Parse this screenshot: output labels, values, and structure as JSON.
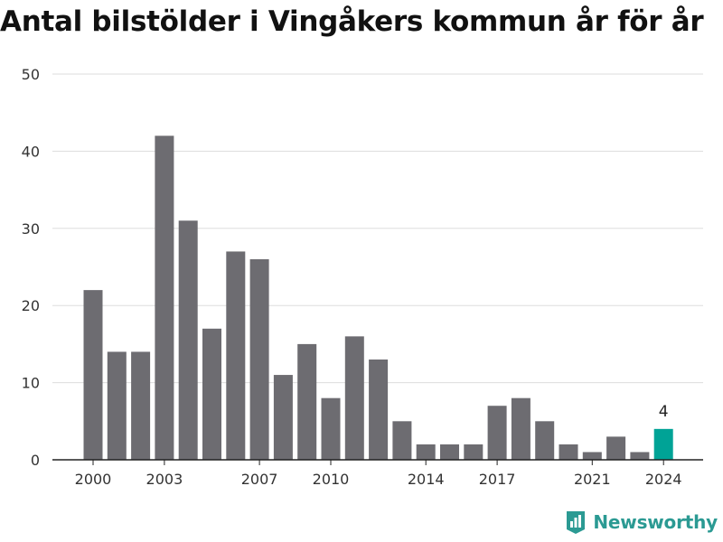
{
  "chart_data": {
    "type": "bar",
    "title": "Antal bilstölder i Vingåkers kommun år för år",
    "categories": [
      "2000",
      "2001",
      "2002",
      "2003",
      "2004",
      "2005",
      "2006",
      "2007",
      "2008",
      "2009",
      "2010",
      "2011",
      "2012",
      "2013",
      "2014",
      "2015",
      "2016",
      "2017",
      "2018",
      "2019",
      "2020",
      "2021",
      "2022",
      "2023",
      "2024"
    ],
    "values": [
      22,
      14,
      14,
      42,
      31,
      17,
      27,
      26,
      11,
      15,
      8,
      16,
      13,
      5,
      2,
      2,
      2,
      7,
      8,
      5,
      2,
      1,
      3,
      1,
      4
    ],
    "x_tick_labels": [
      "2000",
      "2003",
      "2007",
      "2010",
      "2014",
      "2017",
      "2021",
      "2024"
    ],
    "ylim": [
      0,
      50
    ],
    "y_ticks": [
      "0",
      "10",
      "20",
      "30",
      "40",
      "50"
    ],
    "grid": true,
    "highlight": {
      "category": "2024",
      "label": "4"
    },
    "colors": {
      "bar": "#6d6c71",
      "highlight": "#00a396",
      "grid": "#dddddd",
      "axis": "#222222"
    }
  },
  "brand": {
    "name": "Newsworthy",
    "color": "#2b9a93"
  }
}
